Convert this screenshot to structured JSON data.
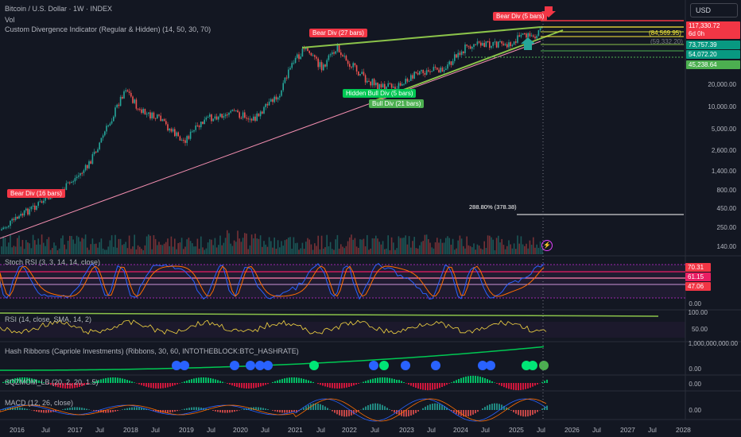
{
  "header": {
    "symbol_title": "Bitcoin / U.S. Dollar · 1W · INDEX",
    "vol_label": "Vol",
    "indicator_title": "Custom Divergence Indicator (Regular & Hidden) (14, 50, 30, 70)",
    "currency": "USD"
  },
  "divergence_labels": {
    "bear_16": "Bear Div (16 bars)",
    "bear_27": "Bear Div (27 bars)",
    "bear_5": "Bear Div (5 bars)",
    "hidden_bull": "Hidden Bull Div (5 bars)",
    "bull_21": "Bull Div (21 bars)"
  },
  "overlay_text": {
    "pct_change": "288.80% (378.38)"
  },
  "price_tags": {
    "p1": "117,330.72",
    "p1_sub": "6d 0h",
    "p2": "73,757.39",
    "p3": "54,072.20",
    "p4": "45,238.64",
    "side_a": "(84,569.95)",
    "side_b": "(59,332.20)",
    "colors": {
      "p1": "#f23645",
      "p2": "#089981",
      "p3": "#089981",
      "p4": "#4caf50"
    }
  },
  "price_axis": [
    "20,000.00",
    "10,000.00",
    "5,000.00",
    "2,600.00",
    "1,400.00",
    "800.00",
    "450.00",
    "250.00",
    "140.00"
  ],
  "panes": {
    "stoch_rsi": {
      "title": "Stoch RSI (3, 3, 14, 14, close)",
      "tags": [
        "70.31",
        "61.15",
        "47.06"
      ],
      "axis_zero": "0.00"
    },
    "rsi": {
      "title": "RSI (14, close, SMA, 14, 2)",
      "axis": [
        "100.00",
        "50.00"
      ]
    },
    "hash_ribbons": {
      "title": "Hash Ribbons (Capriole Investments) (Ribbons, 30, 60, INTOTHEBLOCK:BTC_HASHRATE)",
      "axis": [
        "1,000,000,000.00",
        "0.00"
      ]
    },
    "sqzmom": {
      "title": "SQZMOM_LB (20, 2, 20, 1.5)",
      "axis_zero": "0.00"
    },
    "macd": {
      "title": "MACD (12, 26, close)",
      "axis_zero": "0.00"
    }
  },
  "time_axis": [
    "2016",
    "Jul",
    "2017",
    "Jul",
    "2018",
    "Jul",
    "2019",
    "Jul",
    "2020",
    "Jul",
    "2021",
    "Jul",
    "2022",
    "Jul",
    "2023",
    "Jul",
    "2024",
    "Jul",
    "2025",
    "Jul",
    "2026",
    "Jul",
    "2027",
    "Jul",
    "2028"
  ],
  "colors": {
    "bear": "#f23645",
    "bull": "#4caf50",
    "hidden_bull": "#00e676",
    "trend_green": "#8bc34a",
    "trend_pink": "#f48fb1",
    "candle_up": "#26a69a",
    "candle_down": "#ef5350"
  }
}
